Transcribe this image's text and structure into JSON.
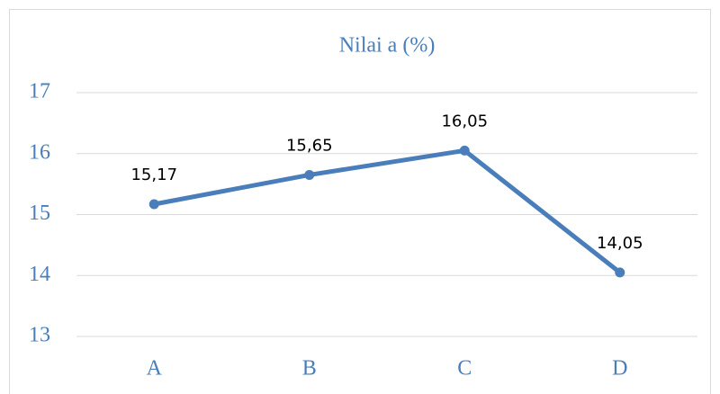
{
  "chart_data": {
    "type": "line",
    "title": "Nilai a (%)",
    "categories": [
      "A",
      "B",
      "C",
      "D"
    ],
    "values": [
      15.17,
      15.65,
      16.05,
      14.05
    ],
    "value_labels": [
      "15,17",
      "15,65",
      "16,05",
      "14,05"
    ],
    "color": "#4a7ebb",
    "ylim": [
      13,
      17
    ],
    "yticks": [
      13,
      14,
      15,
      16,
      17
    ],
    "grid": true
  }
}
